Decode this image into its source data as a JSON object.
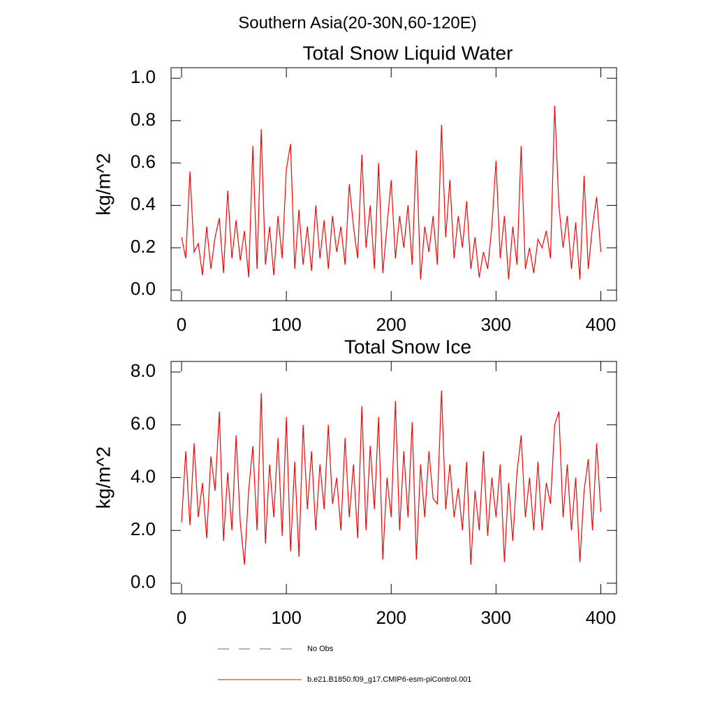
{
  "title": "Southern Asia(20-30N,60-120E)",
  "legend": {
    "entries": [
      {
        "name": "No Obs",
        "color": "#5a6aa0",
        "dash": true
      },
      {
        "name": "b.e21.B1850.f09_g17.CMIP6-esm-piControl.001",
        "color": "#ff0000",
        "dash": false
      }
    ]
  },
  "chart_data": [
    {
      "type": "line",
      "title": "Total Snow Liquid Water",
      "y_label": "kg/m^2",
      "xlim": [
        -10,
        415
      ],
      "ylim": [
        -0.05,
        1.05
      ],
      "xticks": [
        0,
        100,
        200,
        300,
        400
      ],
      "yticks": [
        {
          "value": 0,
          "label": "0.0"
        },
        {
          "value": 0.2,
          "label": "0.2"
        },
        {
          "value": 0.4,
          "label": "0.4"
        },
        {
          "value": 0.6,
          "label": "0.6"
        },
        {
          "value": 0.8,
          "label": "0.8"
        },
        {
          "value": 1,
          "label": "1.0"
        }
      ],
      "x": [
        0,
        4,
        8,
        12,
        16,
        20,
        24,
        28,
        32,
        36,
        40,
        44,
        48,
        52,
        56,
        60,
        64,
        68,
        72,
        76,
        80,
        84,
        88,
        92,
        96,
        100,
        104,
        108,
        112,
        116,
        120,
        124,
        128,
        132,
        136,
        140,
        144,
        148,
        152,
        156,
        160,
        164,
        168,
        172,
        176,
        180,
        184,
        188,
        192,
        196,
        200,
        204,
        208,
        212,
        216,
        220,
        224,
        228,
        232,
        236,
        240,
        244,
        248,
        252,
        256,
        260,
        264,
        268,
        272,
        276,
        280,
        284,
        288,
        292,
        296,
        300,
        304,
        308,
        312,
        316,
        320,
        324,
        328,
        332,
        336,
        340,
        344,
        348,
        352,
        356,
        360,
        364,
        368,
        372,
        376,
        380,
        384,
        388,
        392,
        396,
        400
      ],
      "series": [
        {
          "color": "#ff0000",
          "values": [
            0.25,
            0.15,
            0.56,
            0.18,
            0.22,
            0.07,
            0.3,
            0.1,
            0.25,
            0.34,
            0.08,
            0.47,
            0.15,
            0.33,
            0.14,
            0.28,
            0.06,
            0.68,
            0.1,
            0.76,
            0.12,
            0.3,
            0.07,
            0.35,
            0.15,
            0.57,
            0.69,
            0.1,
            0.38,
            0.12,
            0.3,
            0.09,
            0.4,
            0.15,
            0.33,
            0.1,
            0.35,
            0.18,
            0.3,
            0.12,
            0.5,
            0.3,
            0.15,
            0.64,
            0.2,
            0.4,
            0.1,
            0.6,
            0.08,
            0.3,
            0.52,
            0.15,
            0.35,
            0.2,
            0.4,
            0.12,
            0.66,
            0.05,
            0.3,
            0.18,
            0.35,
            0.12,
            0.78,
            0.25,
            0.52,
            0.15,
            0.35,
            0.2,
            0.42,
            0.1,
            0.25,
            0.06,
            0.18,
            0.1,
            0.3,
            0.61,
            0.15,
            0.35,
            0.05,
            0.3,
            0.12,
            0.68,
            0.1,
            0.2,
            0.08,
            0.24,
            0.2,
            0.28,
            0.15,
            0.87,
            0.4,
            0.2,
            0.35,
            0.1,
            0.32,
            0.05,
            0.54,
            0.1,
            0.3,
            0.44,
            0.18
          ]
        }
      ]
    },
    {
      "type": "line",
      "title": "Total Snow Ice",
      "y_label": "kg/m^2",
      "xlim": [
        -10,
        415
      ],
      "ylim": [
        -0.4,
        8.4
      ],
      "xticks": [
        0,
        100,
        200,
        300,
        400
      ],
      "yticks": [
        {
          "value": 0,
          "label": "0.0"
        },
        {
          "value": 2,
          "label": "2.0"
        },
        {
          "value": 4,
          "label": "4.0"
        },
        {
          "value": 6,
          "label": "6.0"
        },
        {
          "value": 8,
          "label": "8.0"
        }
      ],
      "x": [
        0,
        4,
        8,
        12,
        16,
        20,
        24,
        28,
        32,
        36,
        40,
        44,
        48,
        52,
        56,
        60,
        64,
        68,
        72,
        76,
        80,
        84,
        88,
        92,
        96,
        100,
        104,
        108,
        112,
        116,
        120,
        124,
        128,
        132,
        136,
        140,
        144,
        148,
        152,
        156,
        160,
        164,
        168,
        172,
        176,
        180,
        184,
        188,
        192,
        196,
        200,
        204,
        208,
        212,
        216,
        220,
        224,
        228,
        232,
        236,
        240,
        244,
        248,
        252,
        256,
        260,
        264,
        268,
        272,
        276,
        280,
        284,
        288,
        292,
        296,
        300,
        304,
        308,
        312,
        316,
        320,
        324,
        328,
        332,
        336,
        340,
        344,
        348,
        352,
        356,
        360,
        364,
        368,
        372,
        376,
        380,
        384,
        388,
        392,
        396,
        400
      ],
      "series": [
        {
          "color": "#ff0000",
          "values": [
            2.3,
            5.0,
            2.2,
            5.3,
            2.5,
            3.8,
            1.7,
            4.8,
            3.5,
            6.5,
            1.6,
            4.2,
            2.0,
            5.6,
            2.3,
            0.7,
            3.5,
            5.2,
            2.0,
            7.2,
            1.5,
            4.5,
            2.5,
            5.5,
            1.8,
            6.3,
            1.2,
            4.6,
            1.0,
            6.0,
            2.8,
            5.0,
            2.0,
            4.5,
            2.8,
            6.0,
            3.0,
            4.0,
            2.0,
            5.5,
            2.5,
            4.5,
            1.7,
            6.7,
            2.0,
            5.2,
            2.8,
            6.3,
            0.9,
            4.0,
            2.5,
            6.9,
            2.0,
            5.0,
            2.5,
            6.1,
            0.9,
            4.5,
            2.5,
            5.0,
            3.2,
            3.0,
            7.3,
            2.8,
            4.5,
            2.5,
            3.6,
            2.0,
            4.6,
            0.7,
            3.5,
            2.0,
            5.0,
            1.8,
            4.0,
            2.5,
            4.5,
            0.8,
            3.8,
            1.6,
            4.2,
            5.6,
            2.5,
            4.0,
            2.0,
            4.6,
            2.0,
            3.8,
            3.0,
            6.0,
            6.5,
            2.5,
            4.5,
            2.0,
            4.0,
            0.8,
            3.5,
            4.7,
            2.0,
            5.3,
            2.7
          ]
        }
      ]
    }
  ]
}
